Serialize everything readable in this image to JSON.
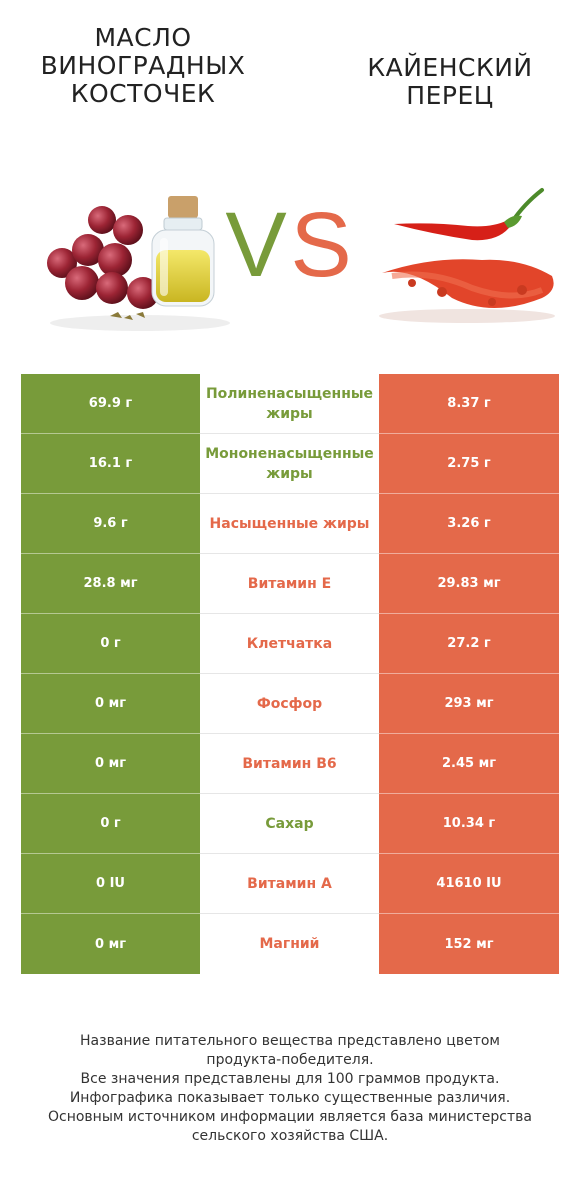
{
  "header": {
    "left_title_lines": [
      "Масло",
      "виноградных",
      "косточек"
    ],
    "right_title_lines": [
      "Кайенский",
      "перец"
    ],
    "vs": {
      "v": "V",
      "s": "S"
    }
  },
  "colors": {
    "left": "#789b3a",
    "right": "#e4694a"
  },
  "rows": [
    {
      "left": "69.9 г",
      "name": "Полиненасыщенные жиры",
      "right": "8.37 г",
      "winner": "left"
    },
    {
      "left": "16.1 г",
      "name": "Мононенасыщенные жиры",
      "right": "2.75 г",
      "winner": "left"
    },
    {
      "left": "9.6 г",
      "name": "Насыщенные жиры",
      "right": "3.26 г",
      "winner": "right"
    },
    {
      "left": "28.8 мг",
      "name": "Витамин E",
      "right": "29.83 мг",
      "winner": "right"
    },
    {
      "left": "0 г",
      "name": "Клетчатка",
      "right": "27.2 г",
      "winner": "right"
    },
    {
      "left": "0 мг",
      "name": "Фосфор",
      "right": "293 мг",
      "winner": "right"
    },
    {
      "left": "0 мг",
      "name": "Витамин B6",
      "right": "2.45 мг",
      "winner": "right"
    },
    {
      "left": "0 г",
      "name": "Сахар",
      "right": "10.34 г",
      "winner": "left"
    },
    {
      "left": "0 IU",
      "name": "Витамин A",
      "right": "41610 IU",
      "winner": "right"
    },
    {
      "left": "0 мг",
      "name": "Магний",
      "right": "152 мг",
      "winner": "right"
    }
  ],
  "footer_lines": [
    "Название питательного вещества представлено цветом",
    "продукта-победителя.",
    "Все значения представлены для 100 граммов продукта.",
    "Инфографика показывает только существенные различия.",
    "Основным источником информации является база министерства",
    "сельского хозяйства США."
  ]
}
